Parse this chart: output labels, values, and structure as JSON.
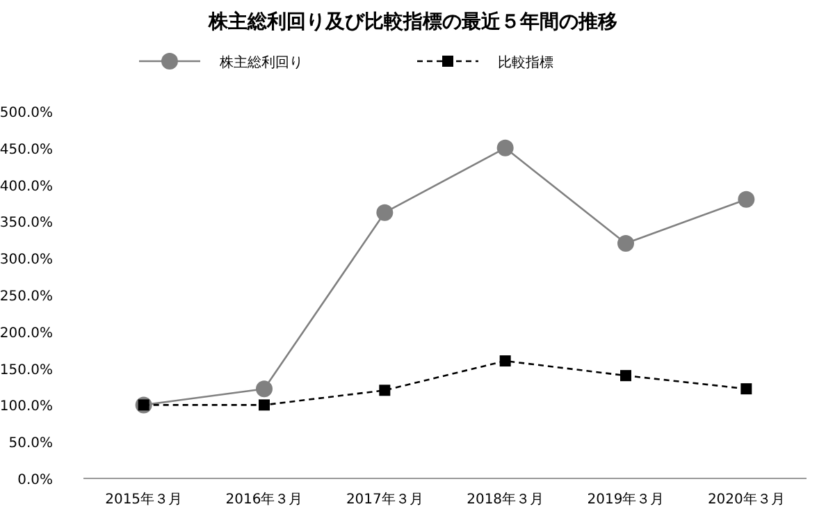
{
  "chart_data": {
    "type": "line",
    "title": "株主総利回り及び比較指標の最近５年間の推移",
    "categories": [
      "2015年３月",
      "2016年３月",
      "2017年３月",
      "2018年３月",
      "2019年３月",
      "2020年３月"
    ],
    "series": [
      {
        "name": "株主総利回り",
        "color": "#808080",
        "marker": "circle",
        "line_style": "solid",
        "values": [
          100,
          122,
          362,
          450,
          320,
          380
        ]
      },
      {
        "name": "比較指標",
        "color": "#000000",
        "marker": "square",
        "line_style": "dashed",
        "values": [
          100,
          100,
          120,
          160,
          140,
          122
        ]
      }
    ],
    "ylim": [
      0,
      500
    ],
    "yticks": [
      {
        "value": 0,
        "label": "0.0%"
      },
      {
        "value": 50,
        "label": "50.0%"
      },
      {
        "value": 100,
        "label": "100.0%"
      },
      {
        "value": 150,
        "label": "150.0%"
      },
      {
        "value": 200,
        "label": "200.0%"
      },
      {
        "value": 250,
        "label": "250.0%"
      },
      {
        "value": 300,
        "label": "300.0%"
      },
      {
        "value": 350,
        "label": "350.0%"
      },
      {
        "value": 400,
        "label": "400.0%"
      },
      {
        "value": 450,
        "label": "450.0%"
      },
      {
        "value": 500,
        "label": "500.0%"
      }
    ],
    "grid": false,
    "legend": "top"
  }
}
